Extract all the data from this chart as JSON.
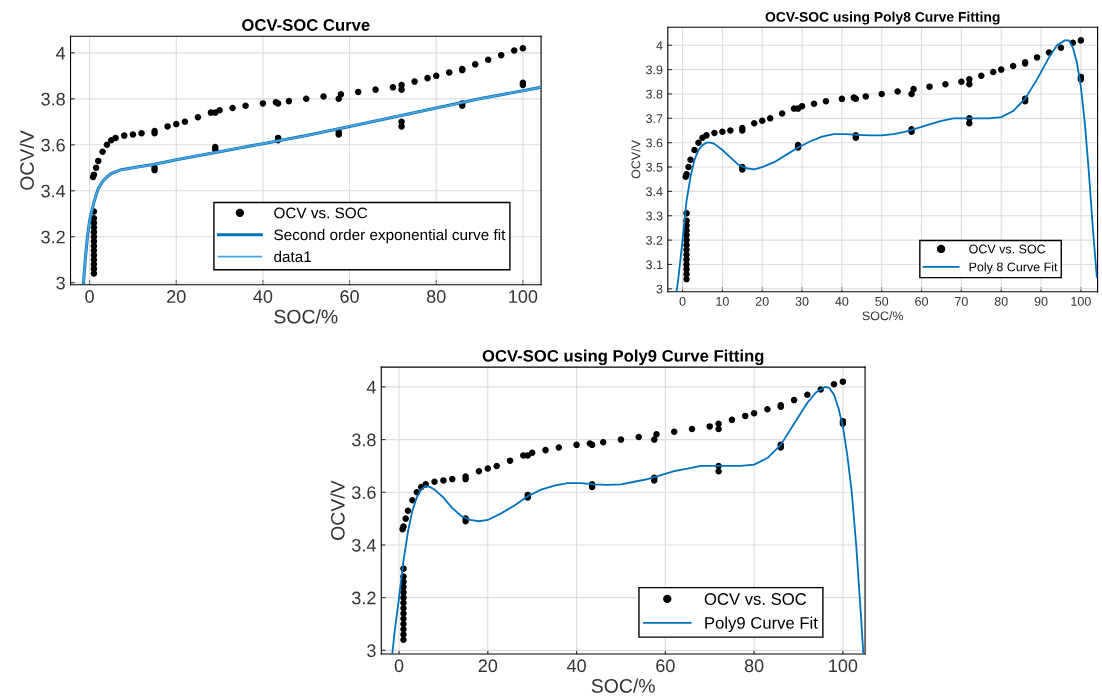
{
  "chart_data": [
    {
      "type": "scatter",
      "title": "OCV-SOC Curve",
      "xlabel": "SOC/%",
      "ylabel": "OCV/V",
      "xlim": [
        -4.4,
        104.2
      ],
      "ylim": [
        2.991,
        4.072
      ],
      "xticks": [
        0,
        20,
        40,
        60,
        80,
        100
      ],
      "yticks": [
        3,
        3.2,
        3.4,
        3.6,
        3.8,
        4
      ],
      "grid": true,
      "legend": "bottom right",
      "series": [
        {
          "name": "OCV vs. SOC",
          "type": "scatter",
          "marker": "circle",
          "color": "#000000",
          "x": [
            1,
            1,
            1,
            1,
            1,
            1,
            1,
            1,
            1,
            1,
            1,
            1,
            1,
            1,
            0.8,
            1,
            1.5,
            2,
            3,
            4,
            5,
            6,
            8,
            10,
            12,
            15,
            18,
            20,
            22,
            25,
            28,
            30,
            33,
            36,
            40,
            43,
            46,
            50,
            54,
            58,
            62,
            66,
            70,
            72,
            75,
            78,
            80,
            83,
            86,
            89,
            92,
            95,
            98,
            100,
            15,
            15,
            15,
            29,
            29,
            29,
            43.5,
            43.5,
            43.5,
            57.5,
            57.5,
            57.5,
            72,
            72,
            72,
            86,
            86,
            86,
            100,
            100
          ],
          "values": [
            3.04,
            3.06,
            3.08,
            3.1,
            3.12,
            3.14,
            3.16,
            3.18,
            3.2,
            3.22,
            3.24,
            3.26,
            3.28,
            3.31,
            3.46,
            3.47,
            3.5,
            3.53,
            3.57,
            3.6,
            3.62,
            3.63,
            3.64,
            3.645,
            3.65,
            3.66,
            3.68,
            3.69,
            3.7,
            3.72,
            3.74,
            3.75,
            3.76,
            3.77,
            3.78,
            3.785,
            3.79,
            3.8,
            3.81,
            3.82,
            3.83,
            3.84,
            3.85,
            3.86,
            3.875,
            3.89,
            3.9,
            3.915,
            3.93,
            3.95,
            3.97,
            3.99,
            4.01,
            4.02,
            3.65,
            3.49,
            3.5,
            3.74,
            3.58,
            3.59,
            3.78,
            3.62,
            3.63,
            3.8,
            3.645,
            3.655,
            3.84,
            3.68,
            3.7,
            3.925,
            3.77,
            3.78,
            3.86,
            3.87
          ]
        },
        {
          "name": "Second order exponential curve fit",
          "type": "line",
          "marker": "none",
          "color": "#0072bd",
          "x": [
            -1.4,
            -1,
            -0.5,
            0,
            1,
            2,
            3,
            4,
            5,
            7,
            10,
            15,
            20,
            30,
            40,
            50,
            60,
            70,
            80,
            90,
            100,
            104.2
          ],
          "values": [
            3.0,
            3.1,
            3.2,
            3.27,
            3.35,
            3.41,
            3.44,
            3.46,
            3.475,
            3.49,
            3.5,
            3.515,
            3.535,
            3.57,
            3.605,
            3.64,
            3.68,
            3.72,
            3.76,
            3.8,
            3.835,
            3.85
          ]
        },
        {
          "name": "data1",
          "type": "line",
          "marker": "none",
          "color": "#4fa3dc",
          "x": [
            -1.4,
            -1,
            -0.5,
            0,
            1,
            2,
            3,
            4,
            5,
            7,
            10,
            15,
            20,
            30,
            40,
            50,
            60,
            70,
            80,
            90,
            100,
            104.2
          ],
          "values": [
            3.0,
            3.1,
            3.2,
            3.27,
            3.35,
            3.41,
            3.44,
            3.46,
            3.475,
            3.49,
            3.5,
            3.515,
            3.535,
            3.57,
            3.605,
            3.64,
            3.68,
            3.72,
            3.76,
            3.8,
            3.835,
            3.85
          ]
        }
      ]
    },
    {
      "type": "scatter",
      "title": "OCV-SOC using Poly8 Curve Fitting",
      "xlabel": "SOC/%",
      "ylabel": "OCV/V",
      "xlim": [
        -3.7,
        104.2
      ],
      "ylim": [
        2.988,
        4.074
      ],
      "xticks": [
        0,
        10,
        20,
        30,
        40,
        50,
        60,
        70,
        80,
        90,
        100
      ],
      "yticks": [
        3,
        3.1,
        3.2,
        3.3,
        3.4,
        3.5,
        3.6,
        3.7,
        3.8,
        3.9,
        4
      ],
      "grid": true,
      "legend": "bottom right",
      "series": [
        {
          "name": "OCV vs. SOC",
          "type": "scatter",
          "marker": "circle",
          "color": "#000000",
          "x": [
            1,
            1,
            1,
            1,
            1,
            1,
            1,
            1,
            1,
            1,
            1,
            1,
            1,
            1,
            0.8,
            1,
            1.5,
            2,
            3,
            4,
            5,
            6,
            8,
            10,
            12,
            15,
            18,
            20,
            22,
            25,
            28,
            30,
            33,
            36,
            40,
            43,
            46,
            50,
            54,
            58,
            62,
            66,
            70,
            72,
            75,
            78,
            80,
            83,
            86,
            89,
            92,
            95,
            98,
            100,
            15,
            15,
            15,
            29,
            29,
            29,
            43.5,
            43.5,
            43.5,
            57.5,
            57.5,
            57.5,
            72,
            72,
            72,
            86,
            86,
            86,
            100,
            100
          ],
          "values": [
            3.04,
            3.06,
            3.08,
            3.1,
            3.12,
            3.14,
            3.16,
            3.18,
            3.2,
            3.22,
            3.24,
            3.26,
            3.28,
            3.31,
            3.46,
            3.47,
            3.5,
            3.53,
            3.57,
            3.6,
            3.62,
            3.63,
            3.64,
            3.645,
            3.65,
            3.66,
            3.68,
            3.69,
            3.7,
            3.72,
            3.74,
            3.75,
            3.76,
            3.77,
            3.78,
            3.785,
            3.79,
            3.8,
            3.81,
            3.82,
            3.83,
            3.84,
            3.85,
            3.86,
            3.875,
            3.89,
            3.9,
            3.915,
            3.93,
            3.95,
            3.97,
            3.99,
            4.01,
            4.02,
            3.65,
            3.49,
            3.5,
            3.74,
            3.58,
            3.59,
            3.78,
            3.62,
            3.63,
            3.8,
            3.645,
            3.655,
            3.84,
            3.68,
            3.7,
            3.925,
            3.77,
            3.78,
            3.86,
            3.87
          ]
        },
        {
          "name": "Poly 8 Curve Fit",
          "type": "line",
          "marker": "none",
          "color": "#0072bd",
          "x": [
            -1.5,
            -1,
            0,
            1,
            2,
            3,
            4,
            5,
            6,
            7,
            8,
            10,
            12,
            14,
            16,
            18,
            20,
            23,
            26,
            29,
            32,
            35,
            38,
            41,
            44,
            47,
            50,
            53,
            56,
            59,
            62,
            65,
            68,
            71,
            74,
            77,
            80,
            83,
            86,
            89,
            92,
            94,
            96,
            97,
            98,
            99,
            100,
            101,
            102,
            103,
            104
          ],
          "values": [
            2.99,
            3.05,
            3.2,
            3.36,
            3.46,
            3.53,
            3.57,
            3.59,
            3.6,
            3.6,
            3.595,
            3.57,
            3.54,
            3.51,
            3.495,
            3.49,
            3.5,
            3.52,
            3.55,
            3.58,
            3.605,
            3.625,
            3.635,
            3.635,
            3.632,
            3.63,
            3.63,
            3.635,
            3.645,
            3.66,
            3.675,
            3.69,
            3.7,
            3.7,
            3.7,
            3.7,
            3.705,
            3.73,
            3.78,
            3.86,
            3.95,
            4.0,
            4.02,
            4.02,
            3.99,
            3.93,
            3.83,
            3.68,
            3.48,
            3.25,
            3.05
          ]
        }
      ]
    },
    {
      "type": "scatter",
      "title": "OCV-SOC using Poly9 Curve Fitting",
      "xlabel": "SOC/%",
      "ylabel": "OCV/V",
      "xlim": [
        -4,
        105
      ],
      "ylim": [
        2.986,
        4.075
      ],
      "xticks": [
        0,
        20,
        40,
        60,
        80,
        100
      ],
      "yticks": [
        3,
        3.2,
        3.4,
        3.6,
        3.8,
        4
      ],
      "grid": true,
      "legend": "bottom right",
      "series": [
        {
          "name": "OCV vs. SOC",
          "type": "scatter",
          "marker": "circle",
          "color": "#000000",
          "x": [
            1,
            1,
            1,
            1,
            1,
            1,
            1,
            1,
            1,
            1,
            1,
            1,
            1,
            1,
            0.8,
            1,
            1.5,
            2,
            3,
            4,
            5,
            6,
            8,
            10,
            12,
            15,
            18,
            20,
            22,
            25,
            28,
            30,
            33,
            36,
            40,
            43,
            46,
            50,
            54,
            58,
            62,
            66,
            70,
            72,
            75,
            78,
            80,
            83,
            86,
            89,
            92,
            95,
            98,
            100,
            15,
            15,
            15,
            29,
            29,
            29,
            43.5,
            43.5,
            43.5,
            57.5,
            57.5,
            57.5,
            72,
            72,
            72,
            86,
            86,
            86,
            100,
            100
          ],
          "values": [
            3.04,
            3.06,
            3.08,
            3.1,
            3.12,
            3.14,
            3.16,
            3.18,
            3.2,
            3.22,
            3.24,
            3.26,
            3.28,
            3.31,
            3.46,
            3.47,
            3.5,
            3.53,
            3.57,
            3.6,
            3.62,
            3.63,
            3.64,
            3.645,
            3.65,
            3.66,
            3.68,
            3.69,
            3.7,
            3.72,
            3.74,
            3.75,
            3.76,
            3.77,
            3.78,
            3.785,
            3.79,
            3.8,
            3.81,
            3.82,
            3.83,
            3.84,
            3.85,
            3.86,
            3.875,
            3.89,
            3.9,
            3.915,
            3.93,
            3.95,
            3.97,
            3.99,
            4.01,
            4.02,
            3.65,
            3.49,
            3.5,
            3.74,
            3.58,
            3.59,
            3.78,
            3.62,
            3.63,
            3.8,
            3.645,
            3.655,
            3.84,
            3.68,
            3.7,
            3.925,
            3.77,
            3.78,
            3.86,
            3.87
          ]
        },
        {
          "name": "Poly9 Curve Fit",
          "type": "line",
          "marker": "none",
          "color": "#0072bd",
          "x": [
            -1.5,
            -1,
            0,
            1,
            2,
            3,
            4,
            5,
            6,
            7,
            8,
            10,
            12,
            14,
            16,
            18,
            20,
            23,
            26,
            29,
            32,
            35,
            38,
            41,
            44,
            47,
            50,
            53,
            56,
            59,
            62,
            65,
            68,
            71,
            74,
            77,
            80,
            83,
            86,
            89,
            92,
            94,
            96,
            97,
            98,
            99,
            100,
            101,
            102,
            103,
            104,
            104.6
          ],
          "values": [
            2.99,
            3.07,
            3.2,
            3.34,
            3.45,
            3.53,
            3.58,
            3.61,
            3.625,
            3.62,
            3.61,
            3.58,
            3.54,
            3.51,
            3.495,
            3.49,
            3.495,
            3.52,
            3.55,
            3.585,
            3.61,
            3.625,
            3.635,
            3.635,
            3.63,
            3.628,
            3.63,
            3.64,
            3.65,
            3.665,
            3.68,
            3.69,
            3.7,
            3.7,
            3.7,
            3.7,
            3.705,
            3.73,
            3.78,
            3.86,
            3.94,
            3.98,
            4.0,
            3.995,
            3.97,
            3.92,
            3.85,
            3.74,
            3.6,
            3.4,
            3.15,
            2.99
          ]
        }
      ]
    }
  ]
}
